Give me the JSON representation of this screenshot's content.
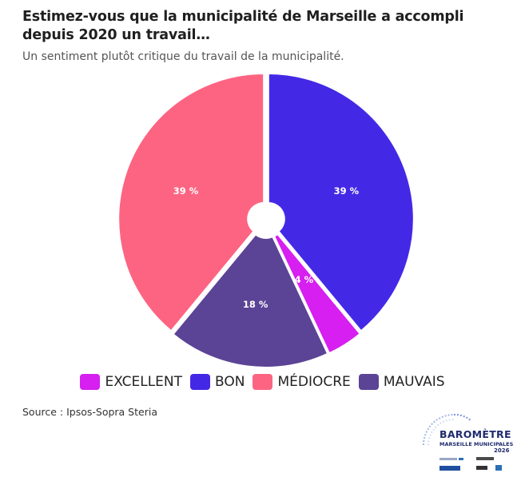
{
  "title": "Estimez-vous que la municipalité de Marseille a accompli depuis 2020 un travail…",
  "subtitle": "Un sentiment plutôt critique du travail de la municipalité.",
  "source": "Source : Ipsos-Sopra Steria",
  "logo": {
    "title": "BAROMÈTRE",
    "subtitle": "MARSEILLE MUNICIPALES",
    "year": "2026"
  },
  "chart_data": {
    "type": "pie",
    "title": "Estimez-vous que la municipalité de Marseille a accompli depuis 2020 un travail…",
    "subtitle": "Un sentiment plutôt critique du travail de la municipalité.",
    "legend_position": "bottom",
    "slices": [
      {
        "label": "BON",
        "value": 39,
        "value_label": "39 %",
        "color": "#4329e6"
      },
      {
        "label": "EXCELLENT",
        "value": 4,
        "value_label": "4 %",
        "color": "#d61ff0"
      },
      {
        "label": "MAUVAIS",
        "value": 18,
        "value_label": "18 %",
        "color": "#5b4396"
      },
      {
        "label": "MÉDIOCRE",
        "value": 39,
        "value_label": "39 %",
        "color": "#fd6482"
      }
    ],
    "legend_order": [
      "EXCELLENT",
      "BON",
      "MÉDIOCRE",
      "MAUVAIS"
    ]
  }
}
